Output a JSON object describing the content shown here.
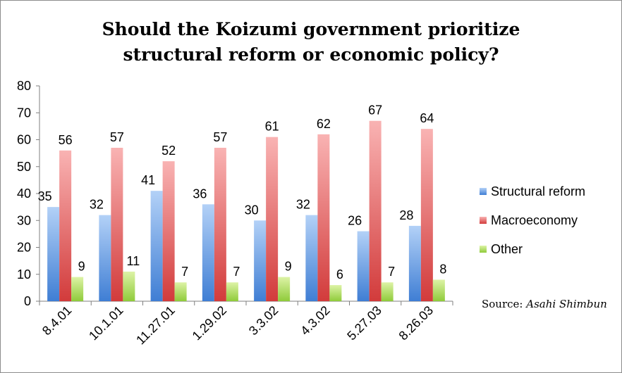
{
  "chart_data": {
    "type": "bar",
    "title_line1": "Should the Koizumi government prioritize",
    "title_line2": "structural reform or economic policy?",
    "categories": [
      "8.4.01",
      "10.1.01",
      "11.27.01",
      "1.29.02",
      "3.3.02",
      "4.3.02",
      "5.27.03",
      "8.26.03"
    ],
    "series": [
      {
        "name": "Structural reform",
        "values": [
          35,
          32,
          41,
          36,
          30,
          32,
          26,
          28
        ],
        "color_top": "#b3d1f7",
        "color_bottom": "#3f7ed4"
      },
      {
        "name": "Macroeconomy",
        "values": [
          56,
          57,
          52,
          57,
          61,
          62,
          67,
          64
        ],
        "color_top": "#f9b3b3",
        "color_bottom": "#d23b3b"
      },
      {
        "name": "Other",
        "values": [
          9,
          11,
          7,
          7,
          9,
          6,
          7,
          8
        ],
        "color_top": "#ddf3a6",
        "color_bottom": "#8fcb3a"
      }
    ],
    "ylim": [
      0,
      80
    ],
    "yticks": [
      0,
      10,
      20,
      30,
      40,
      50,
      60,
      70,
      80
    ],
    "legend_position": "right",
    "grid": false,
    "source_prefix": "Source: ",
    "source_name": "Asahi Shimbun"
  }
}
